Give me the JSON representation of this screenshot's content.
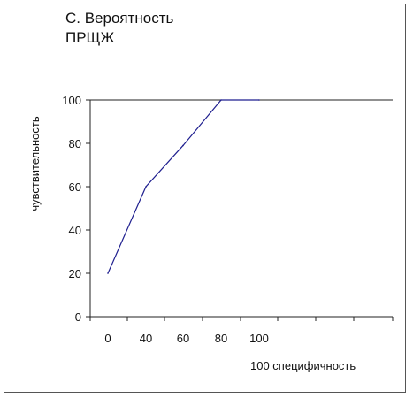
{
  "chart_data": {
    "type": "line",
    "title": "С. Вероятность\nПРЩЖ",
    "xlabel": "100 специфичность",
    "ylabel": "чувствительность",
    "x_tick_labels": [
      "0",
      "40",
      "60",
      "80",
      "100"
    ],
    "y_ticks": [
      0,
      20,
      40,
      60,
      80,
      100
    ],
    "ylim": [
      0,
      100
    ],
    "grid": false,
    "series": [
      {
        "color": "#1f1f8f",
        "points": [
          {
            "x": "0",
            "y": 20
          },
          {
            "x": "40",
            "y": 60
          },
          {
            "x": "60",
            "y": 79
          },
          {
            "x": "80",
            "y": 100
          },
          {
            "x": "100",
            "y": 100
          }
        ]
      }
    ]
  }
}
